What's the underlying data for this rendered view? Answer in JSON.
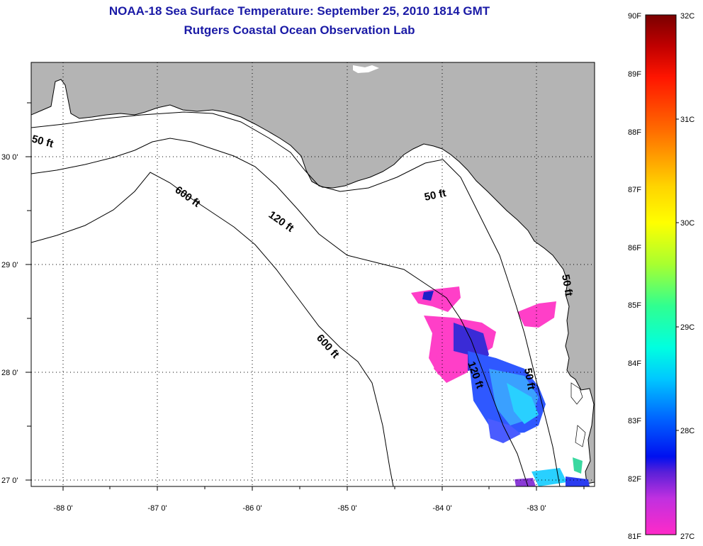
{
  "header": {
    "title": "NOAA-18 Sea Surface Temperature:  September 25, 2010 1814 GMT",
    "subtitle": "Rutgers Coastal Ocean Observation Lab"
  },
  "map": {
    "lon_ticks": [
      "-88 0'",
      "-87 0'",
      "-86 0'",
      "-85 0'",
      "-84 0'",
      "-83 0'"
    ],
    "lat_ticks": [
      "30 0'",
      "29 0'",
      "28 0'",
      "27 0'"
    ],
    "contour_labels": [
      "50 ft",
      "600 ft",
      "120 ft",
      "50 ft",
      "600 ft",
      "120 ft",
      "50 ft",
      "50 ft"
    ],
    "land_color": "#b4b4b4",
    "ocean_color": "#ffffff",
    "grid": "dotted"
  },
  "colorbar": {
    "f_labels": [
      "90F",
      "89F",
      "88F",
      "87F",
      "86F",
      "85F",
      "84F",
      "83F",
      "82F",
      "81F"
    ],
    "c_labels": [
      "32C",
      "31C",
      "30C",
      "29C",
      "28C",
      "27C"
    ]
  }
}
